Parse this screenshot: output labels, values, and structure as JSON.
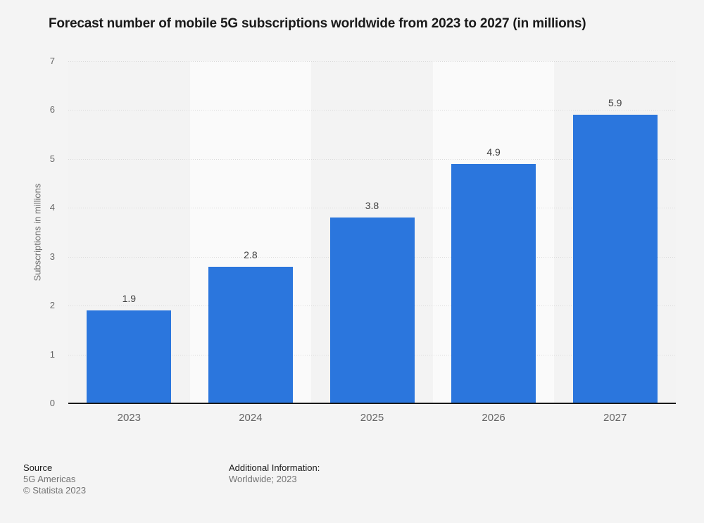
{
  "chart_data": {
    "type": "bar",
    "title": "Forecast number of mobile 5G subscriptions worldwide from 2023 to 2027 (in millions)",
    "categories": [
      "2023",
      "2024",
      "2025",
      "2026",
      "2027"
    ],
    "values": [
      1.9,
      2.8,
      3.8,
      4.9,
      5.9
    ],
    "value_labels": [
      "1.9",
      "2.8",
      "3.8",
      "4.9",
      "5.9"
    ],
    "xlabel": "",
    "ylabel": "Subscriptions in millions",
    "ylim": [
      0,
      7
    ],
    "yticks": [
      0,
      1,
      2,
      3,
      4,
      5,
      6,
      7
    ],
    "grid": "horizontal-dotted",
    "legend": "none"
  },
  "footer": {
    "source_label": "Source",
    "source_name": "5G Americas",
    "copyright": "© Statista 2023",
    "additional_info_label": "Additional Information:",
    "additional_info_value": "Worldwide; 2023"
  },
  "colors": {
    "bar": "#2b76dd",
    "page_background": "#f4f4f4",
    "stripe_light": "#fafafa",
    "stripe_dark": "#f3f3f3",
    "gridline": "#d9d9d9",
    "axis_line": "#1a1a1a",
    "title_text": "#1a1a1a",
    "tick_text": "#666666",
    "value_label_text": "#404040",
    "footer_muted_text": "#737373"
  }
}
